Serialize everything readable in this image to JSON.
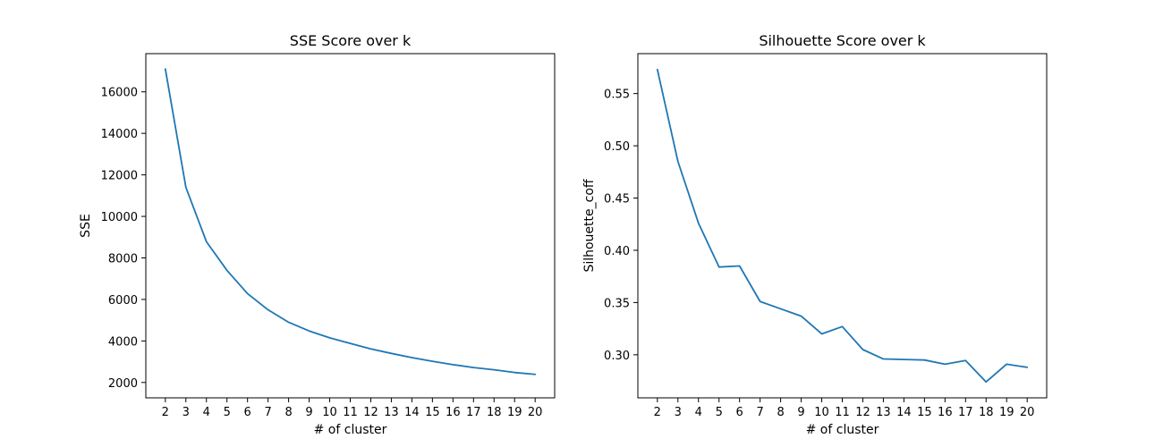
{
  "chart_data": [
    {
      "type": "line",
      "title": "SSE Score over k",
      "xlabel": "# of cluster",
      "ylabel": "SSE",
      "x": [
        2,
        3,
        4,
        5,
        6,
        7,
        8,
        9,
        10,
        11,
        12,
        13,
        14,
        15,
        16,
        17,
        18,
        19,
        20
      ],
      "xticks": [
        2,
        3,
        4,
        5,
        6,
        7,
        8,
        9,
        10,
        11,
        12,
        13,
        14,
        15,
        16,
        17,
        18,
        19,
        20
      ],
      "yticks": [
        2000,
        4000,
        6000,
        8000,
        10000,
        12000,
        14000,
        16000
      ],
      "ylim": [
        1260,
        17840
      ],
      "xlim": [
        1.05,
        20.95
      ],
      "grid": false,
      "legend": "none",
      "series": [
        {
          "values": [
            17100,
            11400,
            8780,
            7400,
            6280,
            5500,
            4900,
            4480,
            4150,
            3880,
            3620,
            3400,
            3200,
            3020,
            2860,
            2720,
            2610,
            2480,
            2390
          ],
          "color": "#1f77b4"
        }
      ]
    },
    {
      "type": "line",
      "title": "Silhouette Score over k",
      "xlabel": "# of cluster",
      "ylabel": "Silhouette_coff",
      "x": [
        2,
        3,
        4,
        5,
        6,
        7,
        8,
        9,
        10,
        11,
        12,
        13,
        14,
        15,
        16,
        17,
        18,
        19,
        20
      ],
      "xticks": [
        2,
        3,
        4,
        5,
        6,
        7,
        8,
        9,
        10,
        11,
        12,
        13,
        14,
        15,
        16,
        17,
        18,
        19,
        20
      ],
      "yticks": [
        0.3,
        0.35,
        0.4,
        0.45,
        0.5,
        0.55
      ],
      "ylim": [
        0.2588,
        0.5882
      ],
      "xlim": [
        1.05,
        20.95
      ],
      "grid": false,
      "legend": "none",
      "series": [
        {
          "values": [
            0.573,
            0.485,
            0.426,
            0.384,
            0.385,
            0.351,
            0.344,
            0.337,
            0.32,
            0.327,
            0.305,
            0.296,
            0.2955,
            0.295,
            0.291,
            0.2945,
            0.274,
            0.291,
            0.288
          ],
          "color": "#1f77b4"
        }
      ]
    }
  ]
}
